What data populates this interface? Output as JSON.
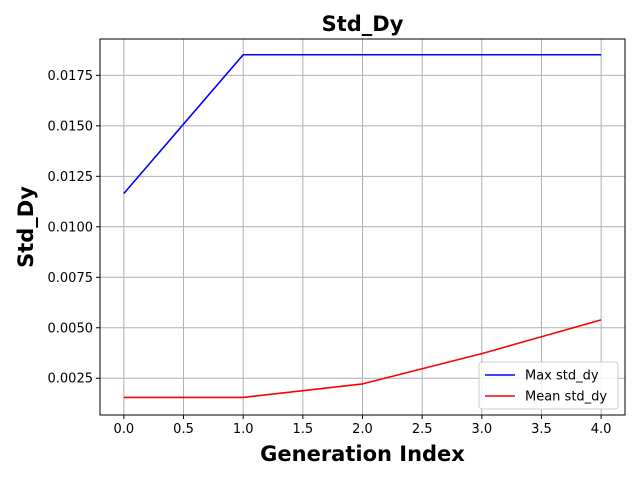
{
  "chart_data": {
    "type": "line",
    "title": "Std_Dy",
    "xlabel": "Generation Index",
    "ylabel": "Std_Dy",
    "x": [
      0,
      1,
      2,
      3,
      4
    ],
    "xlim": [
      -0.2,
      4.2
    ],
    "ylim": [
      0.00068,
      0.0193
    ],
    "xticks": [
      0.0,
      0.5,
      1.0,
      1.5,
      2.0,
      2.5,
      3.0,
      3.5,
      4.0
    ],
    "xtick_labels": [
      "0.0",
      "0.5",
      "1.0",
      "1.5",
      "2.0",
      "2.5",
      "3.0",
      "3.5",
      "4.0"
    ],
    "yticks": [
      0.0025,
      0.005,
      0.0075,
      0.01,
      0.0125,
      0.015,
      0.0175
    ],
    "ytick_labels": [
      "0.0025",
      "0.0050",
      "0.0075",
      "0.0100",
      "0.0125",
      "0.0150",
      "0.0175"
    ],
    "grid": true,
    "legend_position": "lower-right",
    "series": [
      {
        "name": "Max std_dy",
        "color": "#0000ff",
        "values": [
          0.01165,
          0.01852,
          0.01852,
          0.01852,
          0.01852
        ]
      },
      {
        "name": "Mean std_dy",
        "color": "#ff0000",
        "values": [
          0.00155,
          0.00155,
          0.00222,
          0.00372,
          0.00539
        ]
      }
    ]
  }
}
